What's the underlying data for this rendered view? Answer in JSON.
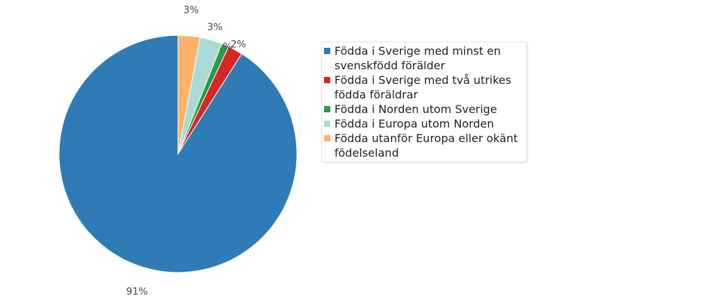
{
  "chart_data": {
    "type": "pie",
    "title": "",
    "legend_position": "right",
    "slices": [
      {
        "label": "Födda i Sverige med minst en svenskfödd förälder",
        "value": 91,
        "value_label": "91%",
        "color": "#2f7bb6"
      },
      {
        "label": "Födda i Sverige med två utrikes födda föräldrar",
        "value": 2,
        "value_label": "2%",
        "color": "#d62728"
      },
      {
        "label": "Födda i Norden utom Sverige",
        "value": 1,
        "value_label": "1%",
        "color": "#2a9a47"
      },
      {
        "label": "Födda i Europa utom Norden",
        "value": 3,
        "value_label": "3%",
        "color": "#aadad5"
      },
      {
        "label": "Födda utanför Europa eller okänt födelseland",
        "value": 3,
        "value_label": "3%",
        "color": "#fdb36b"
      }
    ]
  }
}
